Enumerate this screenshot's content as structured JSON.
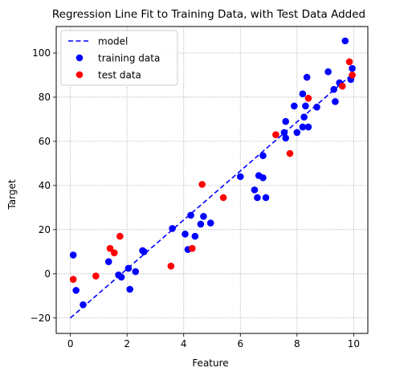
{
  "chart_data": {
    "type": "scatter",
    "title": "Regression Line Fit to Training Data, with Test Data Added",
    "xlabel": "Feature",
    "ylabel": "Target",
    "xlim": [
      -0.5,
      10.5
    ],
    "ylim": [
      -27,
      112
    ],
    "xticks": [
      0,
      2,
      4,
      6,
      8,
      10
    ],
    "yticks": [
      -20,
      0,
      20,
      40,
      60,
      80,
      100
    ],
    "grid": true,
    "legend_position": "top-left",
    "series": [
      {
        "name": "model",
        "style": "dashed-line",
        "color": "#0000ff",
        "x": [
          0,
          10
        ],
        "y": [
          -20,
          91
        ]
      },
      {
        "name": "training data",
        "style": "marker",
        "color": "#0000ff",
        "x": [
          0.1,
          0.2,
          0.45,
          1.35,
          1.7,
          1.8,
          2.05,
          2.1,
          2.3,
          2.55,
          2.6,
          3.6,
          4.05,
          4.15,
          4.25,
          4.4,
          4.6,
          4.7,
          4.95,
          6.0,
          6.5,
          6.6,
          6.65,
          6.8,
          6.8,
          6.9,
          7.55,
          7.6,
          7.6,
          7.9,
          8.0,
          8.2,
          8.2,
          8.25,
          8.3,
          8.35,
          8.4,
          8.7,
          9.1,
          9.3,
          9.35,
          9.5,
          9.7,
          9.9,
          9.95
        ],
        "y": [
          8.5,
          -7.5,
          -14,
          5.5,
          -0.5,
          -1.5,
          2.5,
          -7,
          1,
          10.5,
          10,
          20.5,
          18,
          11,
          26.5,
          17,
          22.5,
          26,
          23,
          44,
          38,
          34.5,
          44.5,
          53.5,
          43.5,
          34.5,
          64,
          61.5,
          69,
          76,
          64,
          66.5,
          81.5,
          71,
          76,
          89,
          66.5,
          75.5,
          91.5,
          83.5,
          78,
          86.5,
          105.5,
          88,
          93
        ]
      },
      {
        "name": "test data",
        "style": "marker",
        "color": "#ff0000",
        "x": [
          0.1,
          0.9,
          1.4,
          1.55,
          1.75,
          3.55,
          4.3,
          4.65,
          5.4,
          7.25,
          7.75,
          8.4,
          9.6,
          9.85,
          9.95
        ],
        "y": [
          -2.5,
          -1,
          11.5,
          9.5,
          17,
          3.5,
          11.5,
          40.5,
          34.5,
          63,
          54.5,
          79.5,
          85,
          96,
          90
        ]
      }
    ]
  }
}
